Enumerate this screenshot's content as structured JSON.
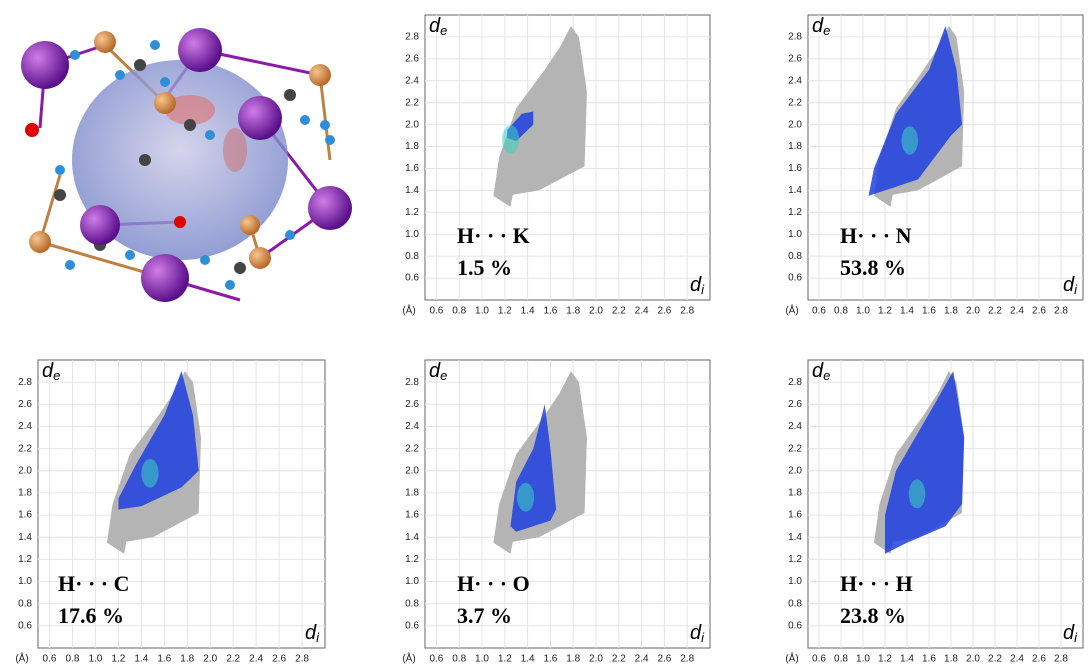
{
  "chart_data": [
    {
      "type": "fingerprint",
      "ylabel": "d",
      "ylabel_subscript": "e",
      "xlabel": "d",
      "xlabel_subscript": "i",
      "x_unit": "(Å)",
      "annotations": [
        "H· · · K",
        "1.5 %"
      ],
      "xlim": [
        0.5,
        3.0
      ],
      "ylim": [
        0.4,
        3.0
      ],
      "xticks": [
        0.6,
        0.8,
        {
          "value": 1.0,
          "label": "1.0"
        },
        1.2,
        1.4,
        1.6,
        1.8,
        {
          "value": 2.0,
          "label": "2.0"
        },
        2.2,
        2.4,
        2.6,
        2.8
      ],
      "yticks": [
        0.6,
        0.8,
        {
          "value": 1.0,
          "label": "1.0"
        },
        1.2,
        1.4,
        1.6,
        1.8,
        {
          "value": 2.0,
          "label": "2.0"
        },
        2.2,
        2.4,
        2.6,
        2.8
      ],
      "grid": true
    },
    {
      "type": "fingerprint",
      "ylabel": "d",
      "ylabel_subscript": "e",
      "xlabel": "d",
      "xlabel_subscript": "i",
      "x_unit": "(Å)",
      "annotations": [
        "H· · · N",
        "53.8 %"
      ],
      "xlim": [
        0.5,
        3.0
      ],
      "ylim": [
        0.4,
        3.0
      ],
      "xticks": [
        0.6,
        0.8,
        {
          "value": 1.0,
          "label": "1.0"
        },
        1.2,
        1.4,
        1.6,
        1.8,
        {
          "value": 2.0,
          "label": "2.0"
        },
        2.2,
        2.4,
        2.6,
        2.8
      ],
      "yticks": [
        0.6,
        0.8,
        {
          "value": 1.0,
          "label": "1.0"
        },
        1.2,
        1.4,
        1.6,
        1.8,
        {
          "value": 2.0,
          "label": "2.0"
        },
        2.2,
        2.4,
        2.6,
        2.8
      ],
      "grid": true
    },
    {
      "type": "fingerprint",
      "ylabel": "d",
      "ylabel_subscript": "e",
      "xlabel": "d",
      "xlabel_subscript": "i",
      "x_unit": "(Å)",
      "annotations": [
        "H· · · C",
        "17.6 %"
      ],
      "xlim": [
        0.5,
        3.0
      ],
      "ylim": [
        0.4,
        3.0
      ],
      "xticks": [
        0.6,
        0.8,
        {
          "value": 1.0,
          "label": "1.0"
        },
        1.2,
        1.4,
        1.6,
        1.8,
        {
          "value": 2.0,
          "label": "2.0"
        },
        2.2,
        2.4,
        2.6,
        2.8
      ],
      "yticks": [
        0.6,
        0.8,
        {
          "value": 1.0,
          "label": "1.0"
        },
        1.2,
        1.4,
        1.6,
        1.8,
        {
          "value": 2.0,
          "label": "2.0"
        },
        2.2,
        2.4,
        2.6,
        2.8
      ],
      "grid": true
    },
    {
      "type": "fingerprint",
      "ylabel": "d",
      "ylabel_subscript": "e",
      "xlabel": "d",
      "xlabel_subscript": "i",
      "x_unit": "(Å)",
      "annotations": [
        "H· · · O",
        "3.7 %"
      ],
      "xlim": [
        0.5,
        3.0
      ],
      "ylim": [
        0.4,
        3.0
      ],
      "xticks": [
        0.6,
        0.8,
        {
          "value": 1.0,
          "label": "1.0"
        },
        1.2,
        1.4,
        1.6,
        1.8,
        {
          "value": 2.0,
          "label": "2.0"
        },
        2.2,
        2.4,
        2.6,
        2.8
      ],
      "yticks": [
        0.6,
        0.8,
        {
          "value": 1.0,
          "label": "1.0"
        },
        1.2,
        1.4,
        1.6,
        1.8,
        {
          "value": 2.0,
          "label": "2.0"
        },
        2.2,
        2.4,
        2.6,
        2.8
      ],
      "grid": true
    },
    {
      "type": "fingerprint",
      "ylabel": "d",
      "ylabel_subscript": "e",
      "xlabel": "d",
      "xlabel_subscript": "i",
      "x_unit": "(Å)",
      "annotations": [
        "H· · · H",
        "23.8 %"
      ],
      "xlim": [
        0.5,
        3.0
      ],
      "ylim": [
        0.4,
        3.0
      ],
      "xticks": [
        0.6,
        0.8,
        {
          "value": 1.0,
          "label": "1.0"
        },
        1.2,
        1.4,
        1.6,
        1.8,
        {
          "value": 2.0,
          "label": "2.0"
        },
        2.2,
        2.4,
        2.6,
        2.8
      ],
      "yticks": [
        0.6,
        0.8,
        {
          "value": 1.0,
          "label": "1.0"
        },
        1.2,
        1.4,
        1.6,
        1.8,
        {
          "value": 2.0,
          "label": "2.0"
        },
        2.2,
        2.4,
        2.6,
        2.8
      ],
      "grid": true
    }
  ]
}
